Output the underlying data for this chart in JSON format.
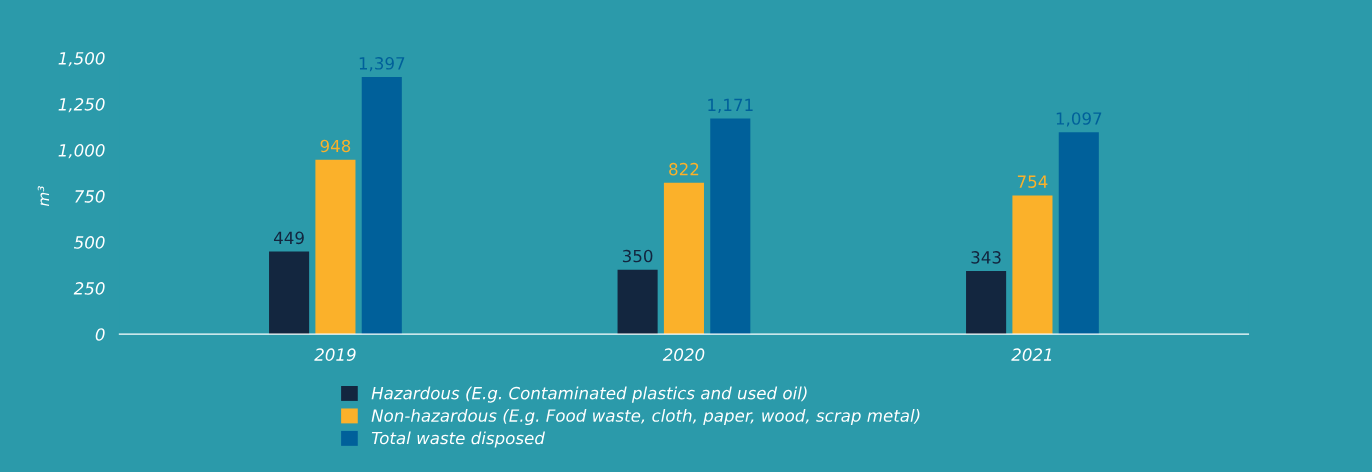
{
  "chart_data": {
    "type": "bar",
    "ylabel": "m³",
    "categories": [
      "2019",
      "2020",
      "2021"
    ],
    "series": [
      {
        "name": "Hazardous (E.g. Contaminated plastics and used oil)",
        "color": "#13263f",
        "values": [
          449,
          350,
          343
        ],
        "value_labels": [
          "449",
          "350",
          "343"
        ]
      },
      {
        "name": "Non-hazardous (E.g. Food waste, cloth, paper, wood, scrap metal)",
        "color": "#fbb12a",
        "values": [
          948,
          822,
          754
        ],
        "value_labels": [
          "948",
          "822",
          "754"
        ]
      },
      {
        "name": "Total waste disposed",
        "color": "#00609a",
        "values": [
          1397,
          1171,
          1097
        ],
        "value_labels": [
          "1,397",
          "1,171",
          "1,097"
        ]
      }
    ],
    "ylim": [
      0,
      1500
    ],
    "yticks": [
      0,
      {
        "value": 250,
        "label": "250"
      },
      {
        "value": 500,
        "label": "500"
      },
      {
        "value": 750,
        "label": "750"
      },
      {
        "value": 1000,
        "label": "1,000"
      },
      {
        "value": 1250,
        "label": "1,250"
      },
      {
        "value": 1500,
        "label": "1,500"
      }
    ],
    "grid": false,
    "legend": "bottom"
  }
}
